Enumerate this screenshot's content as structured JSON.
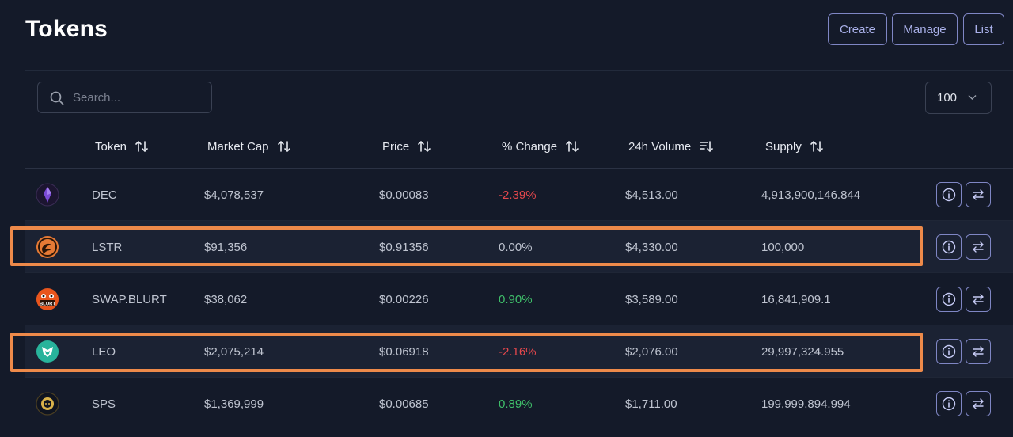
{
  "header": {
    "title": "Tokens",
    "buttons": {
      "create": "Create",
      "manage": "Manage",
      "list": "List"
    }
  },
  "search": {
    "placeholder": "Search...",
    "value": ""
  },
  "page_size": {
    "selected": "100"
  },
  "columns": {
    "token": "Token",
    "market_cap": "Market Cap",
    "price": "Price",
    "change": "% Change",
    "volume": "24h Volume",
    "supply": "Supply"
  },
  "rows": [
    {
      "token": "DEC",
      "market_cap": "$4,078,537",
      "price": "$0.00083",
      "change": "-2.39%",
      "volume": "$4,513.00",
      "supply": "4,913,900,146.844",
      "icon": "dec-crystal-icon",
      "highlighted": false
    },
    {
      "token": "LSTR",
      "market_cap": "$91,356",
      "price": "$0.91356",
      "change": "0.00%",
      "volume": "$4,330.00",
      "supply": "100,000",
      "icon": "lstr-swirl-icon",
      "highlighted": true
    },
    {
      "token": "SWAP.BLURT",
      "market_cap": "$38,062",
      "price": "$0.00226",
      "change": "0.90%",
      "volume": "$3,589.00",
      "supply": "16,841,909.1",
      "icon": "blurt-face-icon",
      "icon_text": "BLURT",
      "highlighted": false
    },
    {
      "token": "LEO",
      "market_cap": "$2,075,214",
      "price": "$0.06918",
      "change": "-2.16%",
      "volume": "$2,076.00",
      "supply": "29,997,324.955",
      "icon": "leo-lion-icon",
      "highlighted": true
    },
    {
      "token": "SPS",
      "market_cap": "$1,369,999",
      "price": "$0.00685",
      "change": "0.89%",
      "volume": "$1,711.00",
      "supply": "199,999,894.994",
      "icon": "sps-coin-icon",
      "highlighted": false
    }
  ],
  "colors": {
    "background": "#141a29",
    "row_alt": "#1b2233",
    "accent_border": "#7f86c4",
    "negative": "#e5484d",
    "positive": "#3fbf6a",
    "highlight": "#ee8a4a"
  }
}
